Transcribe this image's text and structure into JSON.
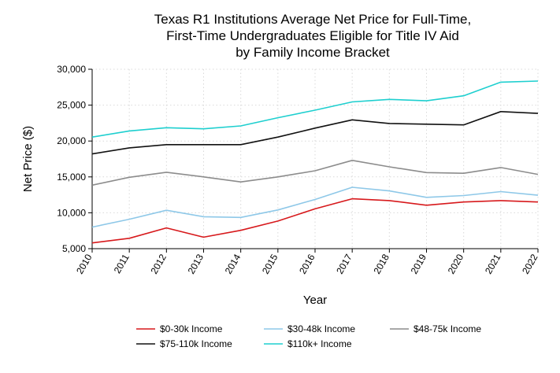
{
  "chart_data": {
    "type": "line",
    "title_lines": [
      "Texas R1 Institutions Average Net Price for Full-Time,",
      "First-Time Undergraduates Eligible for Title IV Aid",
      "by Family Income Bracket"
    ],
    "xlabel": "Year",
    "ylabel": "Net Price ($)",
    "x": [
      "2010",
      "2011",
      "2012",
      "2013",
      "2014",
      "2015",
      "2016",
      "2017",
      "2018",
      "2019",
      "2020",
      "2021",
      "2022"
    ],
    "ylim": [
      5000,
      30000
    ],
    "yticks": [
      5000,
      10000,
      15000,
      20000,
      25000,
      30000
    ],
    "ytick_labels": [
      "5,000",
      "10,000",
      "15,000",
      "20,000",
      "25,000",
      "30,000"
    ],
    "grid": true,
    "legend_position": "bottom",
    "series": [
      {
        "name": "$0-30k Income",
        "color": "#d7191c",
        "values": [
          5800,
          6450,
          7900,
          6600,
          7550,
          8850,
          10550,
          11950,
          11700,
          11050,
          11500,
          11700,
          11500
        ]
      },
      {
        "name": "$30-48k Income",
        "color": "#8ec8e8",
        "values": [
          8000,
          9100,
          10350,
          9450,
          9350,
          10400,
          11850,
          13550,
          13050,
          12150,
          12400,
          12950,
          12450
        ]
      },
      {
        "name": "$48-75k Income",
        "color": "#8c8c8c",
        "values": [
          13850,
          14950,
          15650,
          15000,
          14300,
          15000,
          15850,
          17300,
          16400,
          15600,
          15500,
          16300,
          15350
        ]
      },
      {
        "name": "$75-110k Income",
        "color": "#111111",
        "values": [
          18200,
          19050,
          19500,
          19500,
          19500,
          20550,
          21800,
          22950,
          22450,
          22350,
          22250,
          24100,
          23850
        ]
      },
      {
        "name": "$110k+ Income",
        "color": "#1ecfcf",
        "values": [
          20550,
          21400,
          21850,
          21700,
          22100,
          23250,
          24300,
          25450,
          25800,
          25600,
          26300,
          28200,
          28350
        ]
      }
    ]
  }
}
